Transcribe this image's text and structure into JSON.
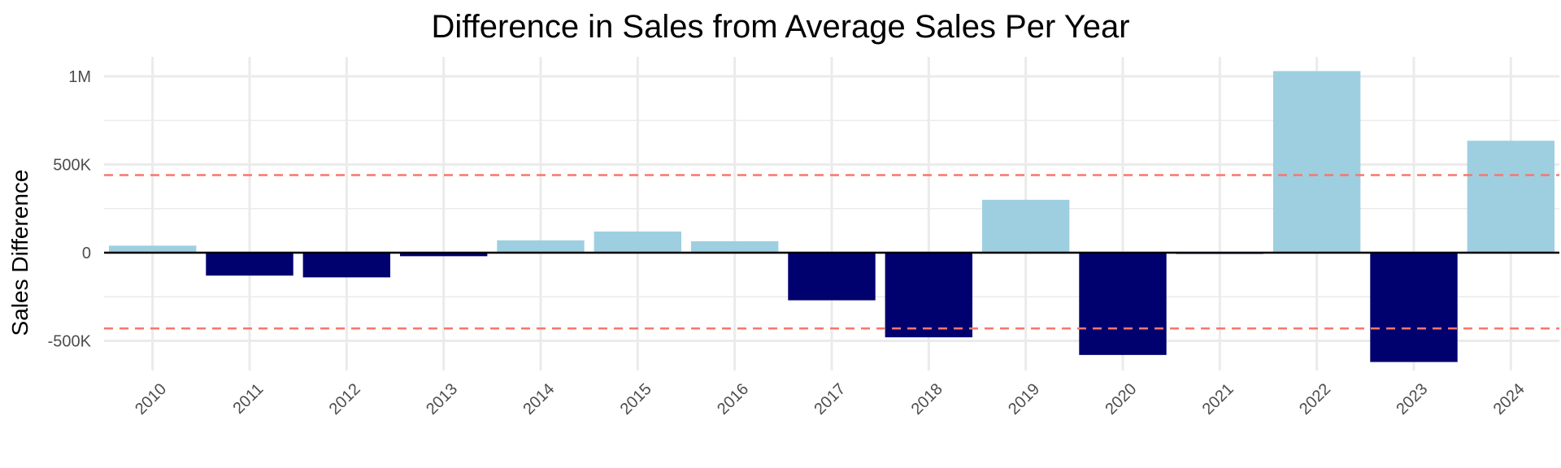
{
  "chart_data": {
    "type": "bar",
    "title": "Difference in Sales from Average Sales Per Year",
    "xlabel": "",
    "ylabel": "Sales Difference",
    "categories": [
      "2010",
      "2011",
      "2012",
      "2013",
      "2014",
      "2015",
      "2016",
      "2017",
      "2018",
      "2019",
      "2020",
      "2021",
      "2022",
      "2023",
      "2024"
    ],
    "values": [
      40000,
      -130000,
      -140000,
      -20000,
      70000,
      120000,
      65000,
      -270000,
      -480000,
      300000,
      -580000,
      -5000,
      1030000,
      -620000,
      635000
    ],
    "ylim": [
      -650000,
      1100000
    ],
    "yticks": [
      {
        "value": 1000000,
        "label": "1M"
      },
      {
        "value": 500000,
        "label": "500K"
      },
      {
        "value": 0,
        "label": "0"
      },
      {
        "value": -500000,
        "label": "-500K"
      }
    ],
    "reference_lines": [
      {
        "value": 440000,
        "style": "dashed",
        "color": "#F8766D"
      },
      {
        "value": -430000,
        "style": "dashed",
        "color": "#F8766D"
      }
    ],
    "zero_line": true,
    "grid": true,
    "legend": "none",
    "colors": {
      "positive": "#9ECFE0",
      "negative": "#00006E",
      "grid": "#EBEBEB",
      "reference": "#F8766D",
      "zero": "#000000"
    }
  }
}
